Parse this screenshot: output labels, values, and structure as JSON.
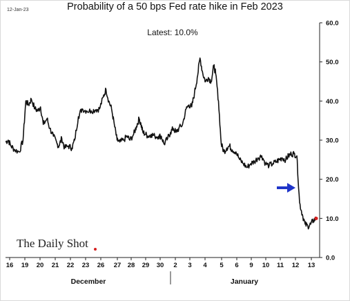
{
  "header": {
    "date_stamp": "12-Jan-23",
    "title": "Probability of a 50 bps Fed rate hike in Feb 2023",
    "latest": "Latest:  10.0%"
  },
  "brand": {
    "name": "The Daily Shot"
  },
  "colors": {
    "line": "#111111",
    "arrow": "#1f35c9",
    "marker": "#d62020"
  },
  "chart_data": {
    "type": "line",
    "title": "Probability of a 50 bps Fed rate hike in Feb 2023",
    "annotation": "Latest:  10.0%",
    "ylim": [
      0,
      60
    ],
    "y_ticks": [
      "0.0",
      "10.0",
      "20.0",
      "30.0",
      "40.0",
      "50.0",
      "60.0"
    ],
    "y_axis_position": "right",
    "grid": false,
    "x_ticks": [
      "16",
      "19",
      "20",
      "21",
      "22",
      "23",
      "26",
      "27",
      "28",
      "29",
      "30",
      "2",
      "3",
      "4",
      "5",
      "6",
      "9",
      "10",
      "11",
      "12",
      "13"
    ],
    "months": [
      "December",
      "January"
    ],
    "series": [
      {
        "values": [
          [
            0,
            29.5
          ],
          [
            0.3,
            30
          ],
          [
            0.6,
            28.5
          ],
          [
            1.0,
            27.5
          ],
          [
            1.5,
            27
          ],
          [
            1.9,
            30
          ],
          [
            2.2,
            40
          ],
          [
            2.5,
            39
          ],
          [
            2.8,
            40.5
          ],
          [
            3.2,
            38
          ],
          [
            3.5,
            37.5
          ],
          [
            3.8,
            38.5
          ],
          [
            4.1,
            34
          ],
          [
            4.5,
            35.5
          ],
          [
            4.8,
            33
          ],
          [
            5.2,
            31
          ],
          [
            5.6,
            29
          ],
          [
            5.8,
            28.5
          ],
          [
            6.1,
            30.5
          ],
          [
            6.4,
            28
          ],
          [
            6.8,
            28.5
          ],
          [
            7.2,
            28
          ],
          [
            7.5,
            30
          ],
          [
            7.9,
            36
          ],
          [
            8.3,
            38
          ],
          [
            8.8,
            37.5
          ],
          [
            9.3,
            37.5
          ],
          [
            9.8,
            37.8
          ],
          [
            10.2,
            38
          ],
          [
            10.6,
            41
          ],
          [
            10.9,
            43
          ],
          [
            11.2,
            40
          ],
          [
            11.5,
            38
          ],
          [
            11.8,
            34
          ],
          [
            12.1,
            30
          ],
          [
            12.4,
            29.5
          ],
          [
            12.8,
            30
          ],
          [
            13.2,
            31
          ],
          [
            13.5,
            30
          ],
          [
            13.9,
            31.5
          ],
          [
            14.2,
            33.5
          ],
          [
            14.5,
            35.5
          ],
          [
            14.7,
            34
          ],
          [
            14.9,
            32
          ],
          [
            15.2,
            31.5
          ],
          [
            15.5,
            31
          ],
          [
            15.8,
            31.5
          ],
          [
            16.2,
            31
          ],
          [
            16.6,
            31
          ],
          [
            16.9,
            31
          ],
          [
            17.2,
            29
          ],
          [
            17.6,
            30.5
          ],
          [
            17.9,
            32
          ],
          [
            18.2,
            33
          ],
          [
            18.5,
            32
          ],
          [
            18.8,
            33
          ],
          [
            19.2,
            34
          ],
          [
            19.6,
            38
          ],
          [
            19.9,
            39
          ],
          [
            20.2,
            38.5
          ],
          [
            20.5,
            42
          ],
          [
            20.8,
            46
          ],
          [
            21.1,
            51
          ],
          [
            21.4,
            47
          ],
          [
            21.7,
            45
          ],
          [
            22.0,
            46
          ],
          [
            22.3,
            45
          ],
          [
            22.6,
            49
          ],
          [
            22.8,
            47
          ],
          [
            23.1,
            40
          ],
          [
            23.4,
            29
          ],
          [
            23.7,
            27
          ],
          [
            24.0,
            28
          ],
          [
            24.3,
            28.5
          ],
          [
            24.6,
            27.5
          ],
          [
            25.0,
            27
          ],
          [
            25.4,
            25
          ],
          [
            25.8,
            24
          ],
          [
            26.2,
            23
          ],
          [
            26.6,
            24
          ],
          [
            27.0,
            24.5
          ],
          [
            27.4,
            25.5
          ],
          [
            27.8,
            26
          ],
          [
            28.2,
            24
          ],
          [
            28.6,
            23.5
          ],
          [
            29.0,
            24
          ],
          [
            29.4,
            24.5
          ],
          [
            29.7,
            25
          ],
          [
            30.0,
            25.5
          ],
          [
            30.4,
            25
          ],
          [
            30.7,
            26
          ],
          [
            31.0,
            26.5
          ],
          [
            31.3,
            26.5
          ],
          [
            31.6,
            26
          ],
          [
            31.9,
            14
          ],
          [
            32.2,
            11
          ],
          [
            32.5,
            8.5
          ],
          [
            32.8,
            8
          ],
          [
            33.1,
            8.5
          ],
          [
            33.4,
            9.5
          ],
          [
            33.7,
            10
          ]
        ]
      }
    ],
    "latest_value": 10.0
  },
  "axis_layout_note": ""
}
